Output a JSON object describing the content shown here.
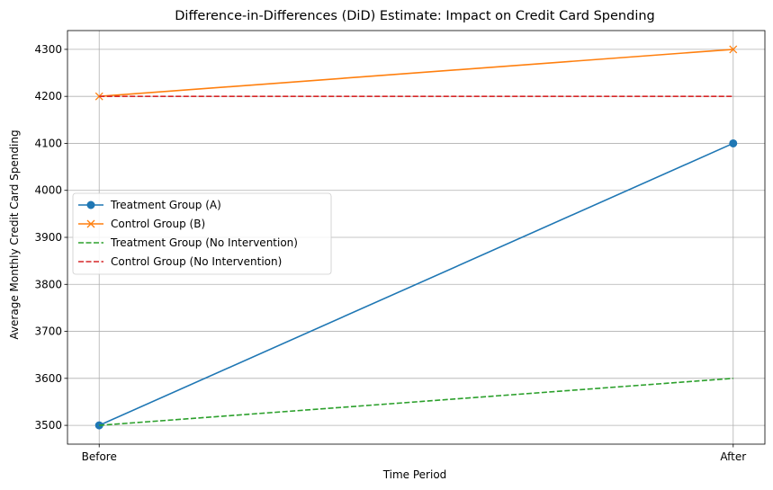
{
  "chart_data": {
    "type": "line",
    "title": "Difference-in-Differences (DiD) Estimate: Impact on Credit Card Spending",
    "xlabel": "Time Period",
    "ylabel": "Average Monthly Credit Card Spending",
    "categories": [
      "Before",
      "After"
    ],
    "ylim": [
      3460,
      4340
    ],
    "yticks": [
      3500,
      3600,
      3700,
      3800,
      3900,
      4000,
      4100,
      4200,
      4300
    ],
    "grid": true,
    "legend_position": "center-left",
    "series": [
      {
        "name": "Treatment Group (A)",
        "values": [
          3500,
          4100
        ],
        "color": "#1f77b4",
        "style": "solid",
        "marker": "circle"
      },
      {
        "name": "Control Group (B)",
        "values": [
          4200,
          4300
        ],
        "color": "#ff7f0e",
        "style": "solid",
        "marker": "x"
      },
      {
        "name": "Treatment Group (No Intervention)",
        "values": [
          3500,
          3600
        ],
        "color": "#2ca02c",
        "style": "dashed",
        "marker": "none"
      },
      {
        "name": "Control Group (No Intervention)",
        "values": [
          4200,
          4200
        ],
        "color": "#d62728",
        "style": "dashed",
        "marker": "none"
      }
    ]
  }
}
